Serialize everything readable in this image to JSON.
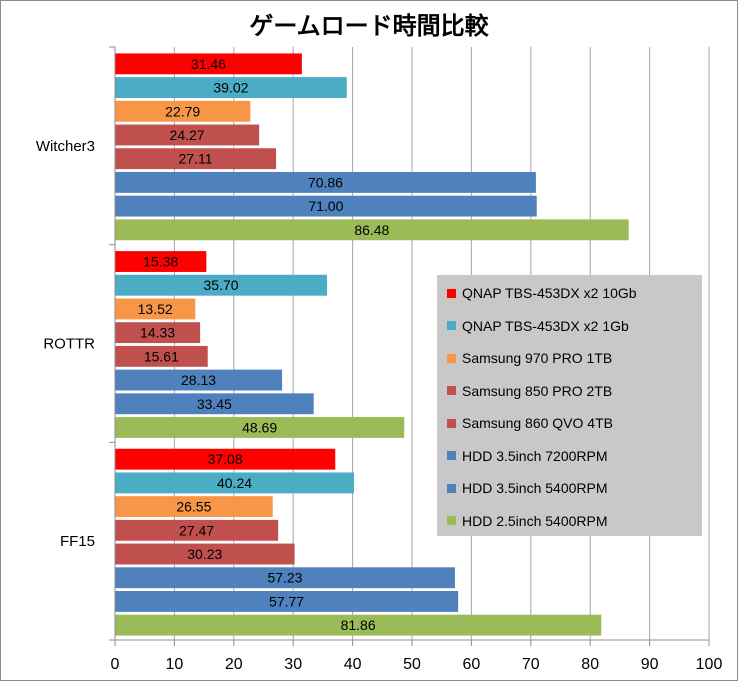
{
  "chart_data": {
    "type": "bar",
    "orientation": "horizontal",
    "title": "ゲームロード時間比較",
    "categories": [
      "Witcher3",
      "ROTTR",
      "FF15"
    ],
    "xlim": [
      0,
      100
    ],
    "xticks": [
      0,
      10,
      20,
      30,
      40,
      50,
      60,
      70,
      80,
      90,
      100
    ],
    "grid": true,
    "legend_position": "right",
    "series": [
      {
        "name": "QNAP TBS-453DX x2 10Gb",
        "color": "#ff0000",
        "values": [
          31.46,
          15.38,
          37.08
        ]
      },
      {
        "name": "QNAP TBS-453DX x2 1Gb",
        "color": "#4bacc6",
        "values": [
          39.02,
          35.7,
          40.24
        ]
      },
      {
        "name": "Samsung 970 PRO 1TB",
        "color": "#f79646",
        "values": [
          22.79,
          13.52,
          26.55
        ]
      },
      {
        "name": "Samsung 850 PRO 2TB",
        "color": "#c0504d",
        "values": [
          24.27,
          14.33,
          27.47
        ]
      },
      {
        "name": "Samsung 860 QVO 4TB",
        "color": "#c0504d",
        "values": [
          27.11,
          15.61,
          30.23
        ]
      },
      {
        "name": "HDD 3.5inch 7200RPM",
        "color": "#4f81bd",
        "values": [
          70.86,
          28.13,
          57.23
        ]
      },
      {
        "name": "HDD 3.5inch 5400RPM",
        "color": "#4f81bd",
        "values": [
          71.0,
          33.45,
          57.77
        ]
      },
      {
        "name": "HDD 2.5inch 5400RPM",
        "color": "#9bbb59",
        "values": [
          86.48,
          48.69,
          81.86
        ]
      }
    ]
  }
}
